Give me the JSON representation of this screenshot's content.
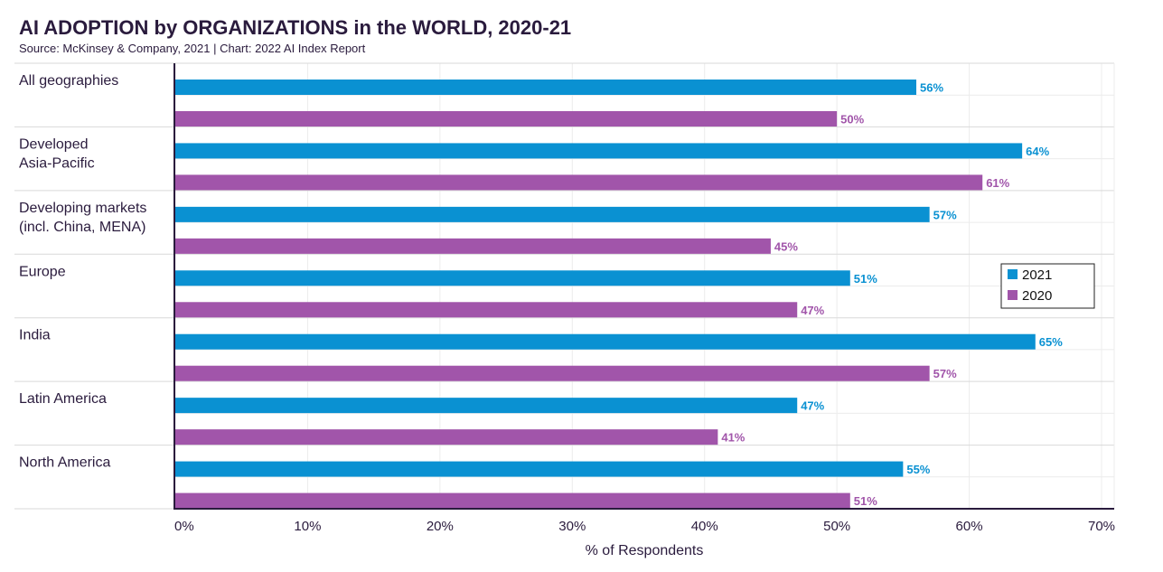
{
  "title": "AI ADOPTION by ORGANIZATIONS in the WORLD, 2020-21",
  "subtitle": "Source: McKinsey & Company, 2021 | Chart: 2022 AI Index Report",
  "chart_data": {
    "type": "bar",
    "orientation": "horizontal",
    "categories": [
      [
        "All geographies"
      ],
      [
        "Developed",
        "Asia-Pacific"
      ],
      [
        "Developing markets",
        "(incl. China, MENA)"
      ],
      [
        "Europe"
      ],
      [
        "India"
      ],
      [
        "Latin America"
      ],
      [
        "North America"
      ]
    ],
    "series": [
      {
        "name": "2021",
        "color": "#0a91d2",
        "values": [
          56,
          64,
          57,
          51,
          65,
          47,
          55
        ]
      },
      {
        "name": "2020",
        "color": "#a155aa",
        "values": [
          50,
          61,
          45,
          47,
          57,
          41,
          51
        ]
      }
    ],
    "value_suffix": "%",
    "xlim": [
      0,
      70
    ],
    "xticks": [
      0,
      10,
      20,
      30,
      40,
      50,
      60,
      70
    ],
    "xtick_labels": [
      "0%",
      "10%",
      "20%",
      "30%",
      "40%",
      "50%",
      "60%",
      "70%"
    ],
    "xlabel": "% of Respondents",
    "grid": true,
    "legend_position": "right"
  }
}
